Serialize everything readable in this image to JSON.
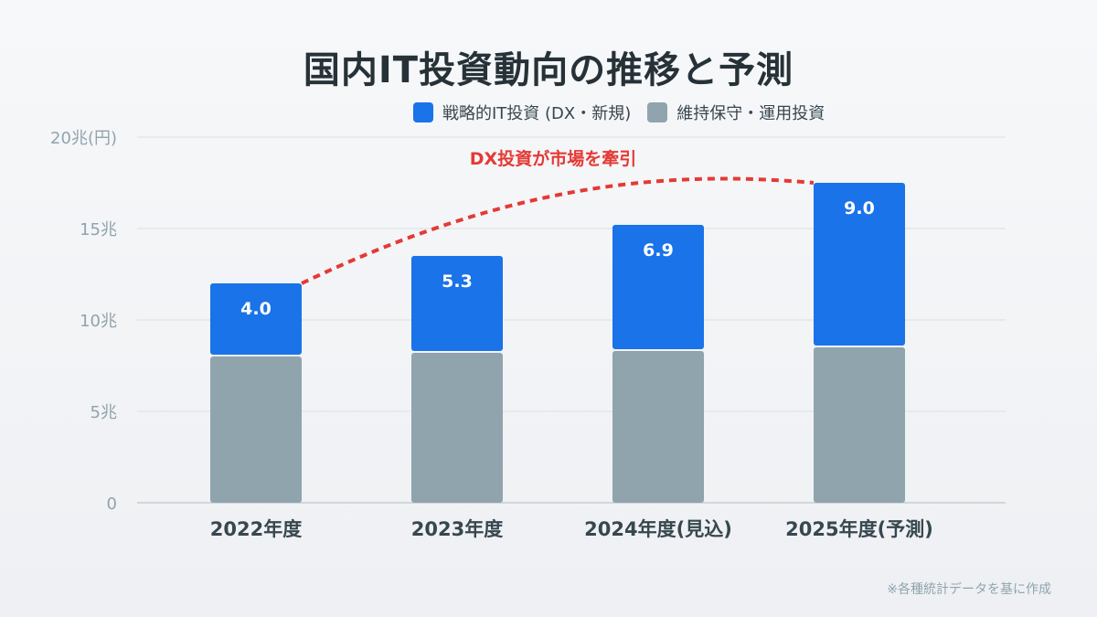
{
  "chart_data": {
    "type": "bar",
    "stacked": true,
    "title": "国内IT投資動向の推移と予測",
    "categories": [
      "2022年度",
      "2023年度",
      "2024年度(見込)",
      "2025年度(予測)"
    ],
    "series": [
      {
        "name": "維持保守・運用投資",
        "color": "#90a4ae",
        "values": [
          8.0,
          8.2,
          8.3,
          8.5
        ]
      },
      {
        "name": "戦略的IT投資 (DX・新規)",
        "color": "#1a73e8",
        "values": [
          4.0,
          5.3,
          6.9,
          9.0
        ],
        "labels": [
          "4.0",
          "5.3",
          "6.9",
          "9.0"
        ]
      }
    ],
    "y_ticks": [
      {
        "value": 0,
        "label": "0"
      },
      {
        "value": 5,
        "label": "5兆"
      },
      {
        "value": 10,
        "label": "10兆"
      },
      {
        "value": 15,
        "label": "15兆"
      },
      {
        "value": 20,
        "label": "20兆(円)"
      }
    ],
    "ylim": [
      0,
      20
    ],
    "grid": true,
    "legend_position": "top",
    "annotation": {
      "text": "DX投資が市場を牽引",
      "color": "#e53935"
    }
  },
  "legend": {
    "strategic": "戦略的IT投資 (DX・新規)",
    "maintenance": "維持保守・運用投資"
  },
  "source": "※各種統計データを基に作成"
}
